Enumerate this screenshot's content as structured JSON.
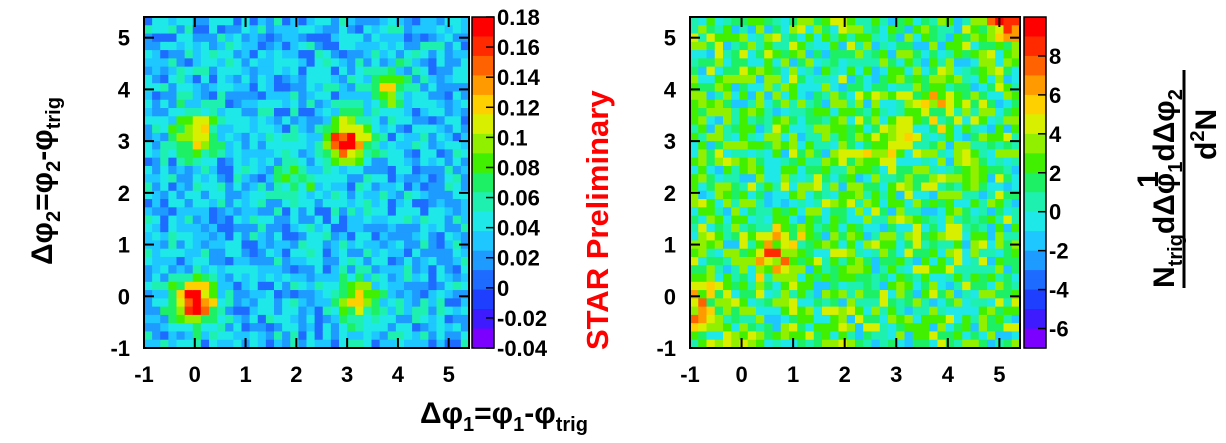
{
  "chart_data": [
    {
      "type": "heatmap",
      "panel": "left",
      "xlabel_main": "Δφ",
      "xlabel_sub1": "1",
      "xlabel_mid": "=φ",
      "xlabel_sub2": "1",
      "xlabel_tail": "-φ",
      "xlabel_sub3": "trig",
      "ylabel_main": "Δφ",
      "ylabel_sub1": "2",
      "ylabel_mid": "=φ",
      "ylabel_sub2": "2",
      "ylabel_tail": "-φ",
      "ylabel_sub3": "trig",
      "xlim": [
        -1.0,
        5.4
      ],
      "ylim": [
        -1.0,
        5.4
      ],
      "x_ticks": [
        "-1",
        "0",
        "1",
        "2",
        "3",
        "4",
        "5"
      ],
      "y_ticks": [
        "-1",
        "0",
        "1",
        "2",
        "3",
        "4",
        "5"
      ],
      "colorbar_ticks": [
        "0.18",
        "0.16",
        "0.14",
        "0.12",
        "0.1",
        "0.08",
        "0.06",
        "0.04",
        "0.02",
        "0",
        "-0.02",
        "-0.04"
      ],
      "zlim": [
        -0.04,
        0.18
      ],
      "hotspots": [
        {
          "x": 0.0,
          "y": 3.2,
          "z": 0.13
        },
        {
          "x": 3.0,
          "y": 3.0,
          "z": 0.18
        },
        {
          "x": 0.0,
          "y": -0.1,
          "z": 0.17
        },
        {
          "x": 3.2,
          "y": -0.1,
          "z": 0.11
        },
        {
          "x": 3.8,
          "y": 4.0,
          "z": 0.1
        },
        {
          "x": 2.0,
          "y": 2.2,
          "z": 0.07
        }
      ],
      "background_level": 0.03
    },
    {
      "type": "heatmap",
      "panel": "right",
      "xlim": [
        -1.0,
        5.4
      ],
      "ylim": [
        -1.0,
        5.4
      ],
      "x_ticks": [
        "-1",
        "0",
        "1",
        "2",
        "3",
        "4",
        "5"
      ],
      "y_ticks": [
        "-1",
        "0",
        "1",
        "2",
        "3",
        "4",
        "5"
      ],
      "colorbar_ticks": [
        "8",
        "6",
        "4",
        "2",
        "0",
        "-2",
        "-4",
        "-6"
      ],
      "zlim": [
        -7,
        10
      ],
      "hotspots": [
        {
          "x": 0.7,
          "y": 0.8,
          "z": 6
        },
        {
          "x": -0.8,
          "y": -0.3,
          "z": 6
        },
        {
          "x": 5.1,
          "y": 5.3,
          "z": 8
        },
        {
          "x": 3.9,
          "y": 3.8,
          "z": 5
        },
        {
          "x": 2.8,
          "y": 2.9,
          "z": 4
        }
      ],
      "background_level": 1.5
    }
  ],
  "annotation": "STAR Preliminary",
  "annotation_color": "#ff0000",
  "colorbar_label_num": "1",
  "colorbar_label_den_main": "N",
  "colorbar_label_den_sub": "trig",
  "colorbar_label_den_rest": "dΔφ",
  "colorbar_label_den_sub1": "1",
  "colorbar_label_den_rest2": "dΔφ",
  "colorbar_label_den_sub2": "2",
  "colorbar_label_frac_num": "d",
  "colorbar_label_frac_sup": "2",
  "colorbar_label_frac_N": "N"
}
